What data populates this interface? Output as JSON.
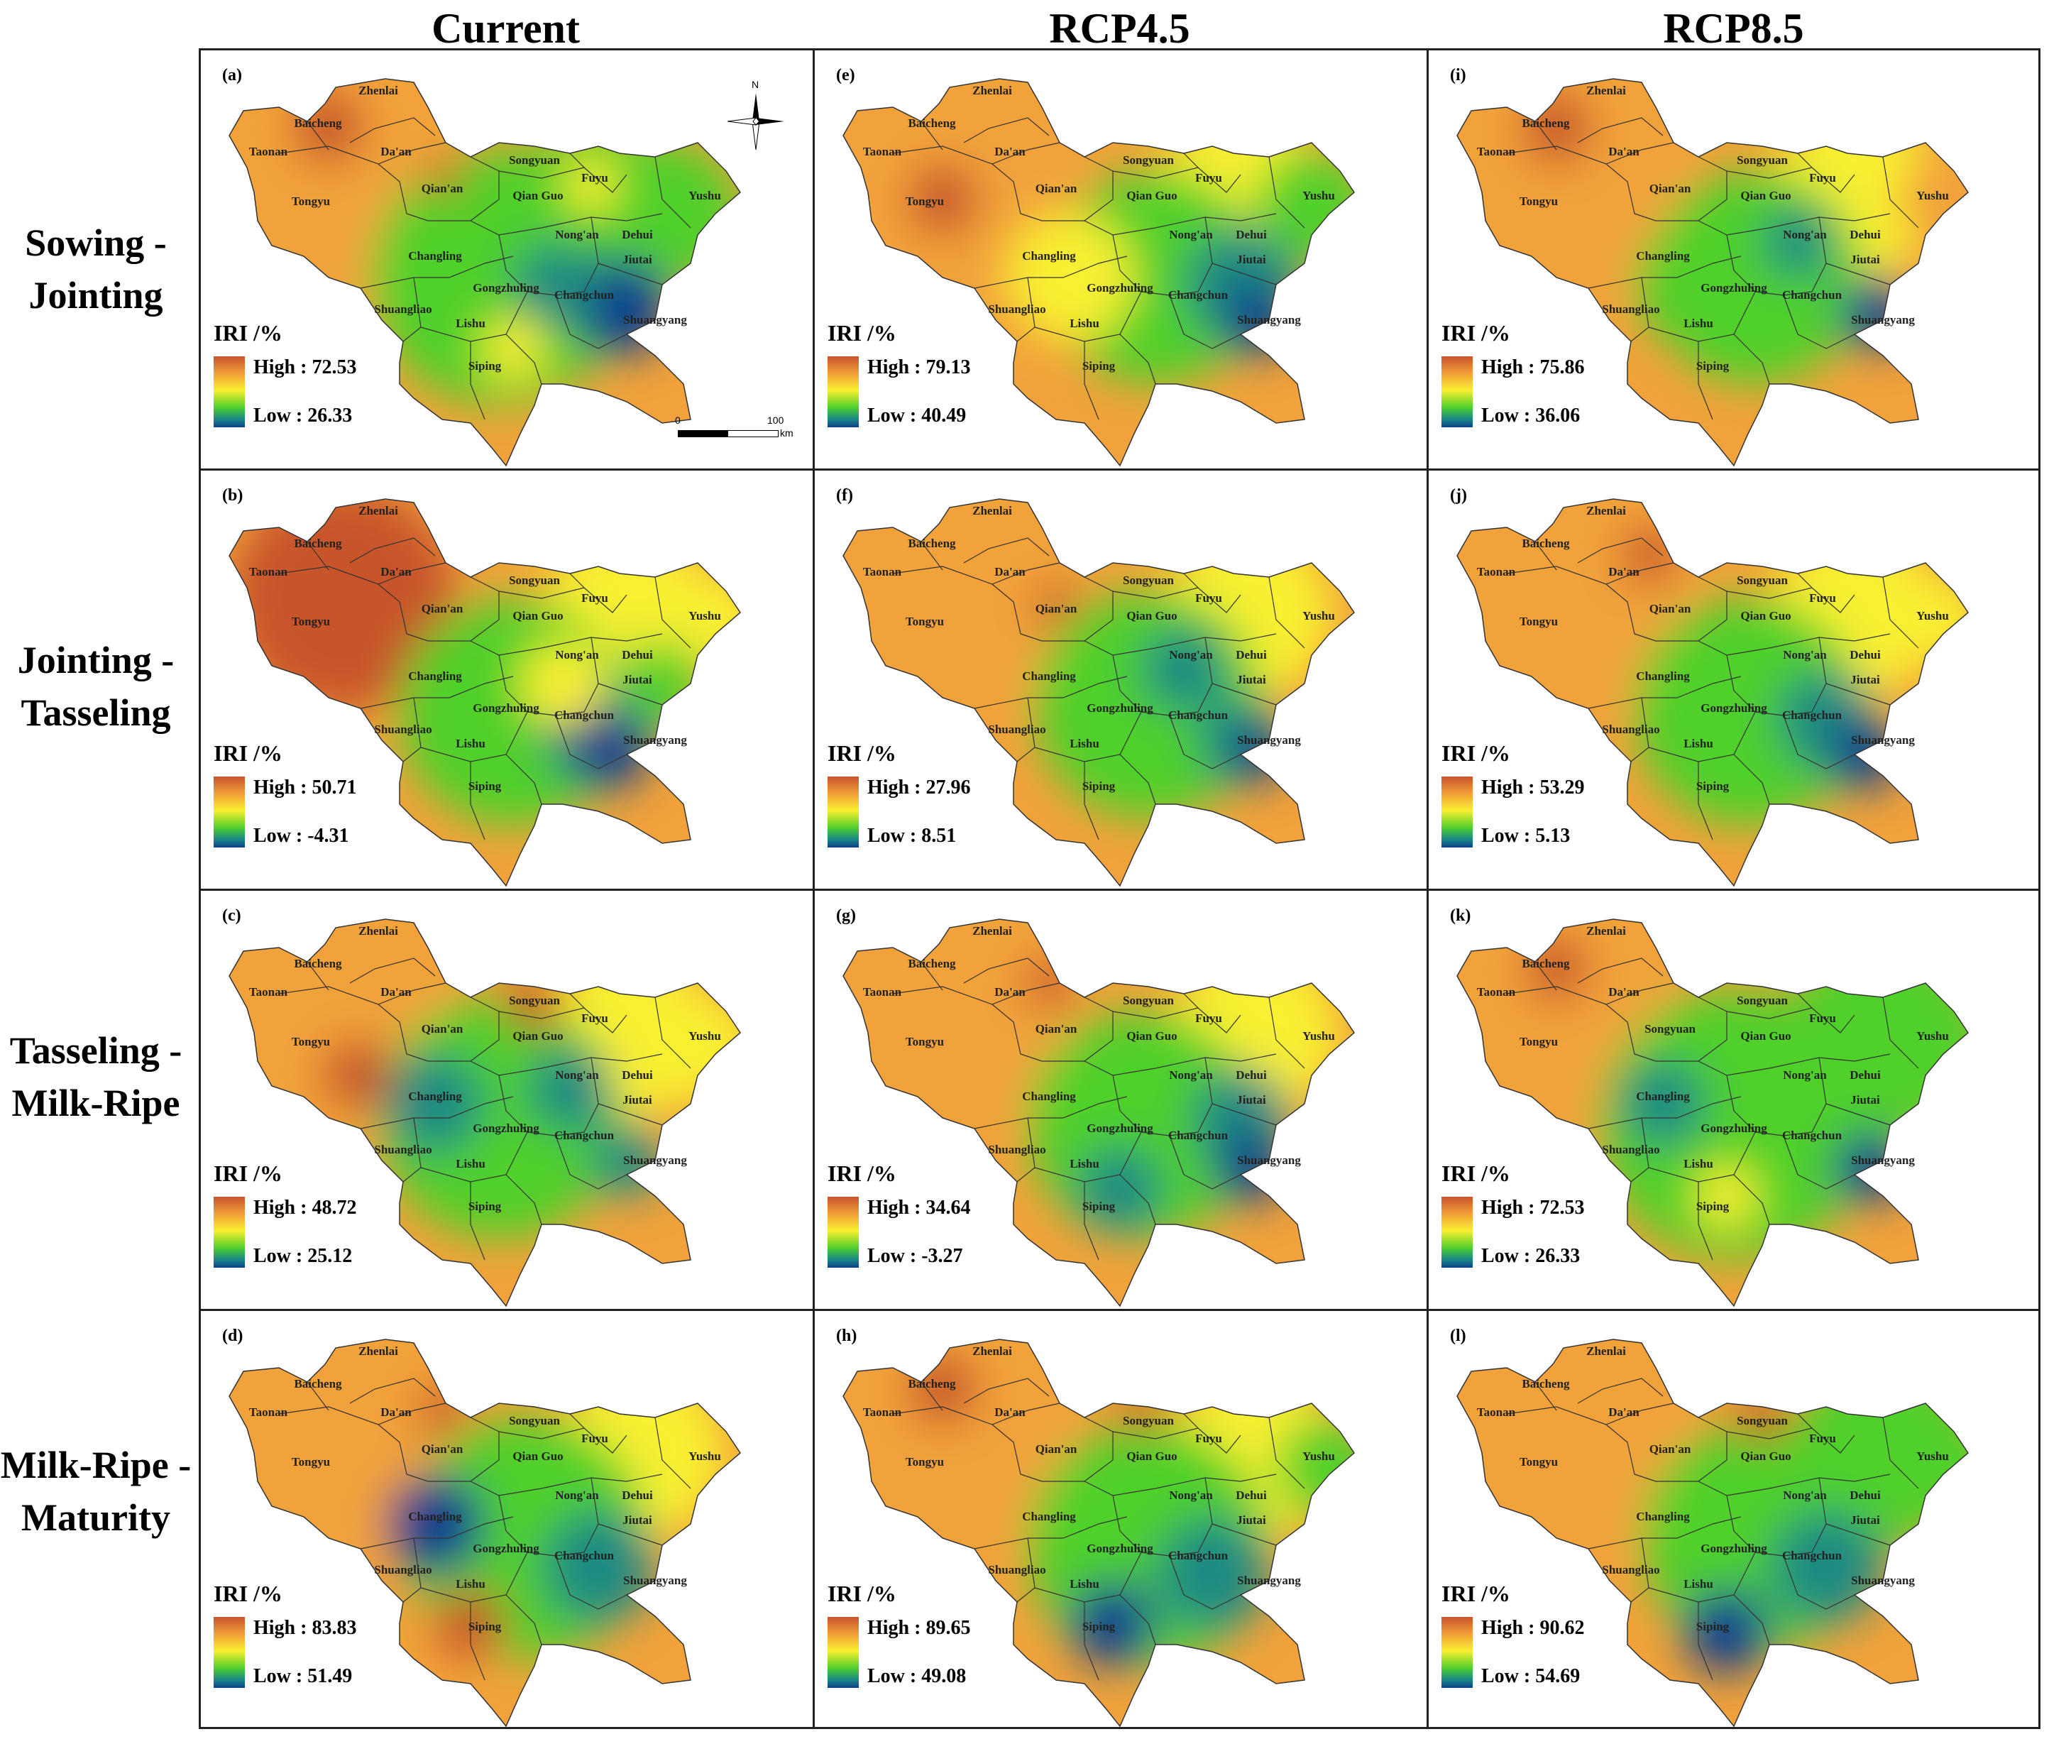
{
  "columns": [
    "Current",
    "RCP4.5",
    "RCP8.5"
  ],
  "rows": [
    [
      "Sowing -",
      "Jointing"
    ],
    [
      "Jointing -",
      "Tasseling"
    ],
    [
      "Tasseling -",
      "Milk-Ripe"
    ],
    [
      "Milk-Ripe -",
      "Maturity"
    ]
  ],
  "legend_title": "IRI /%",
  "north_label": "N",
  "scale": {
    "zero": "0",
    "hundred": "100",
    "unit": "km"
  },
  "panels": [
    {
      "label": "(a)",
      "high": "High : 72.53",
      "low": "Low : 26.33",
      "theme": "a"
    },
    {
      "label": "(e)",
      "high": "High : 79.13",
      "low": "Low : 40.49",
      "theme": "e"
    },
    {
      "label": "(i)",
      "high": "High : 75.86",
      "low": "Low : 36.06",
      "theme": "i"
    },
    {
      "label": "(b)",
      "high": "High : 50.71",
      "low": "Low : -4.31",
      "theme": "b"
    },
    {
      "label": "(f)",
      "high": "High : 27.96",
      "low": "Low : 8.51",
      "theme": "f"
    },
    {
      "label": "(j)",
      "high": "High : 53.29",
      "low": "Low : 5.13",
      "theme": "j"
    },
    {
      "label": "(c)",
      "high": "High : 48.72",
      "low": "Low : 25.12",
      "theme": "c"
    },
    {
      "label": "(g)",
      "high": "High : 34.64",
      "low": "Low : -3.27",
      "theme": "g"
    },
    {
      "label": "(k)",
      "high": "High : 72.53",
      "low": "Low : 26.33",
      "theme": "k"
    },
    {
      "label": "(d)",
      "high": "High : 83.83",
      "low": "Low : 51.49",
      "theme": "d"
    },
    {
      "label": "(h)",
      "high": "High : 89.65",
      "low": "Low : 49.08",
      "theme": "h"
    },
    {
      "label": "(l)",
      "high": "High : 90.62",
      "low": "Low : 54.69",
      "theme": "l"
    }
  ],
  "place_names": {
    "zhenlai": "Zhenlai",
    "baicheng": "Baicheng",
    "taonan": "Taonan",
    "daan": "Da'an",
    "songyuan": "Songyuan",
    "fuyu": "Fuyu",
    "yushu": "Yushu",
    "qianan": "Qian'an",
    "qianguo": "Qian Guo",
    "tongyu": "Tongyu",
    "nongan": "Nong'an",
    "dehui": "Dehui",
    "changling": "Changling",
    "jiutai": "Jiutai",
    "gongzhuling": "Gongzhuling",
    "changchun": "Changchun",
    "shuangliao": "Shuangliao",
    "lishu": "Lishu",
    "shuangyang": "Shuangyang",
    "siping": "Siping"
  },
  "k_panel_center_label": "Songyuan",
  "colors": {
    "red": "#c8542a",
    "orange": "#f2a23a",
    "yellow": "#f9f030",
    "green": "#4fd02c",
    "teal": "#1a8a82",
    "blue": "#0d3f8e"
  }
}
